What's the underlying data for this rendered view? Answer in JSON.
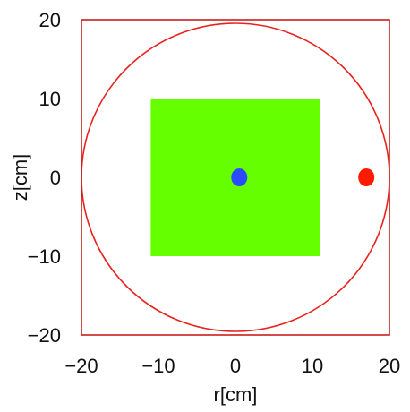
{
  "chart_data": {
    "type": "scatter",
    "xlabel": "r[cm]",
    "ylabel": "z[cm]",
    "xlim": [
      -20,
      20
    ],
    "ylim": [
      -20,
      20
    ],
    "x_ticks": [
      -20,
      -10,
      0,
      10,
      20
    ],
    "y_ticks": [
      20,
      10,
      0,
      -10,
      -20
    ],
    "x_tick_labels": [
      "−20",
      "−10",
      "0",
      "10",
      "20"
    ],
    "y_tick_labels": [
      "20",
      "10",
      "0",
      "−10",
      "−20"
    ],
    "grid": false,
    "shapes": [
      {
        "kind": "circle",
        "center": [
          0,
          0
        ],
        "radius": 20,
        "color": "#e8231f"
      },
      {
        "kind": "rectangle",
        "r_range": [
          -11,
          11
        ],
        "z_range": [
          -10,
          10
        ],
        "color": "#66ff00"
      }
    ],
    "points": [
      {
        "r": 0.5,
        "z": 0,
        "color": "#2a4bff"
      },
      {
        "r": 17,
        "z": 0,
        "color": "#ff1a00"
      }
    ],
    "frame_color": "#c8201c"
  }
}
